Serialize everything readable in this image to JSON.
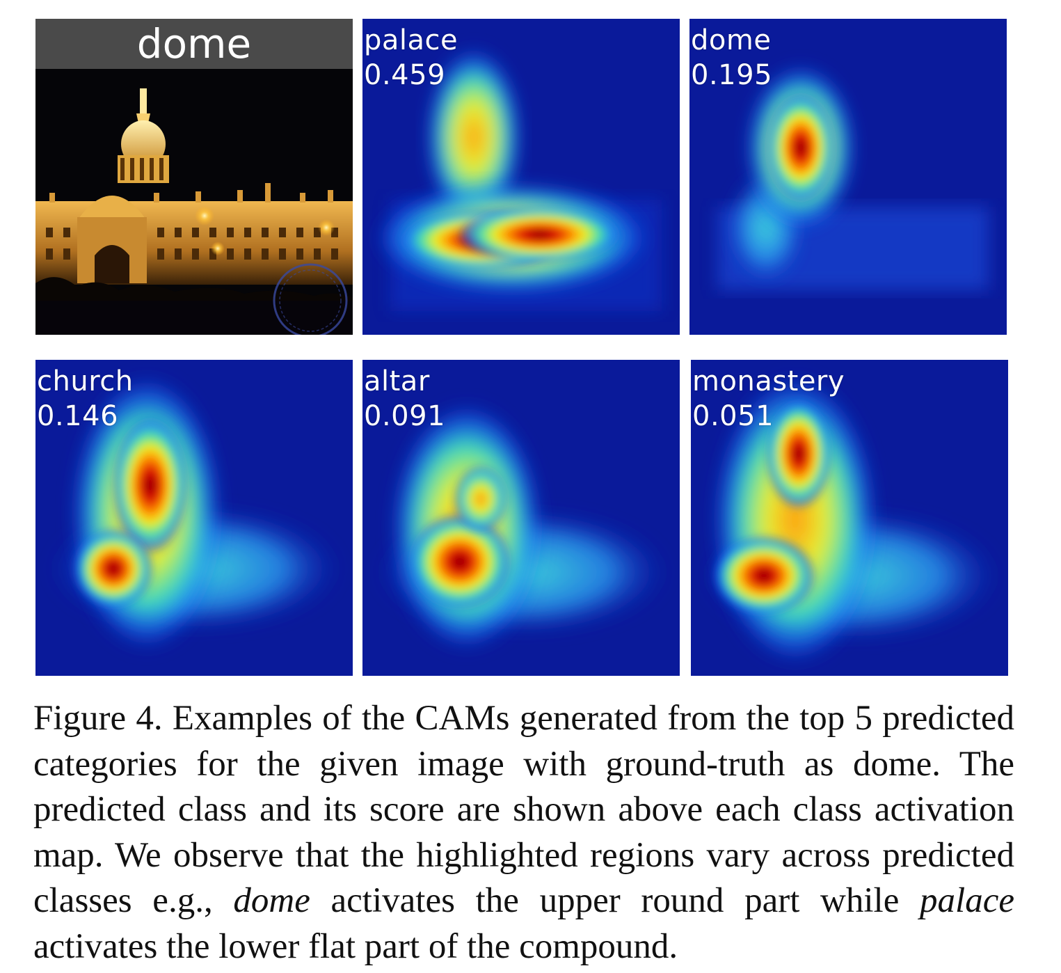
{
  "original_image": {
    "label": "dome"
  },
  "cams": [
    {
      "label": "palace",
      "score": "0.459"
    },
    {
      "label": "dome",
      "score": "0.195"
    },
    {
      "label": "church",
      "score": "0.146"
    },
    {
      "label": "altar",
      "score": "0.091"
    },
    {
      "label": "monastery",
      "score": "0.051"
    }
  ],
  "caption": {
    "part1": "Figure 4. Examples of the CAMs generated from the top 5 pre­dicted categories for the given image with ground-truth as dome. The predicted class and its score are shown above each class ac­tivation map. We observe that the highlighted regions vary across predicted classes e.g., ",
    "em1": "dome",
    "part2": " activates the upper round part while ",
    "em2": "palace",
    "part3": " activates the lower flat part of the compound."
  }
}
